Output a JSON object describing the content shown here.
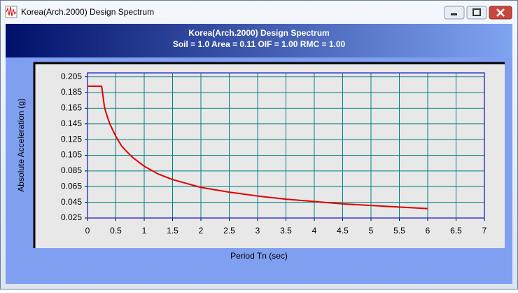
{
  "window": {
    "title": "Korea(Arch.2000) Design Spectrum"
  },
  "chart_data": {
    "type": "line",
    "title": "Korea(Arch.2000) Design Spectrum",
    "subtitle": "Soil = 1.0  Area = 0.11  OIF = 1.00  RMC = 1.00",
    "x_label": "Period Tn (sec)",
    "y_label": "Absolute Acceleration (g)",
    "x": [
      0,
      0.25,
      0.3,
      0.35,
      0.4,
      0.5,
      0.6,
      0.7,
      0.8,
      1,
      1.25,
      1.5,
      2,
      2.5,
      3,
      3.5,
      4,
      4.5,
      5,
      5.5,
      6
    ],
    "values": [
      0.193,
      0.193,
      0.166,
      0.154,
      0.144,
      0.129,
      0.117,
      0.109,
      0.102,
      0.091,
      0.081,
      0.074,
      0.064,
      0.058,
      0.053,
      0.049,
      0.046,
      0.043,
      0.041,
      0.039,
      0.037
    ],
    "color": "#e00000",
    "xlim": [
      0,
      7
    ],
    "xticks": [
      0,
      0.5,
      1,
      1.5,
      2,
      2.5,
      3,
      3.5,
      4,
      4.5,
      5,
      5.5,
      6,
      6.5,
      7
    ],
    "ylim": [
      0.025,
      0.21
    ],
    "yticks": [
      0.025,
      0.045,
      0.065,
      0.085,
      0.105,
      0.125,
      0.145,
      0.165,
      0.185,
      0.205
    ],
    "grid": true,
    "grid_color": "#008080"
  }
}
